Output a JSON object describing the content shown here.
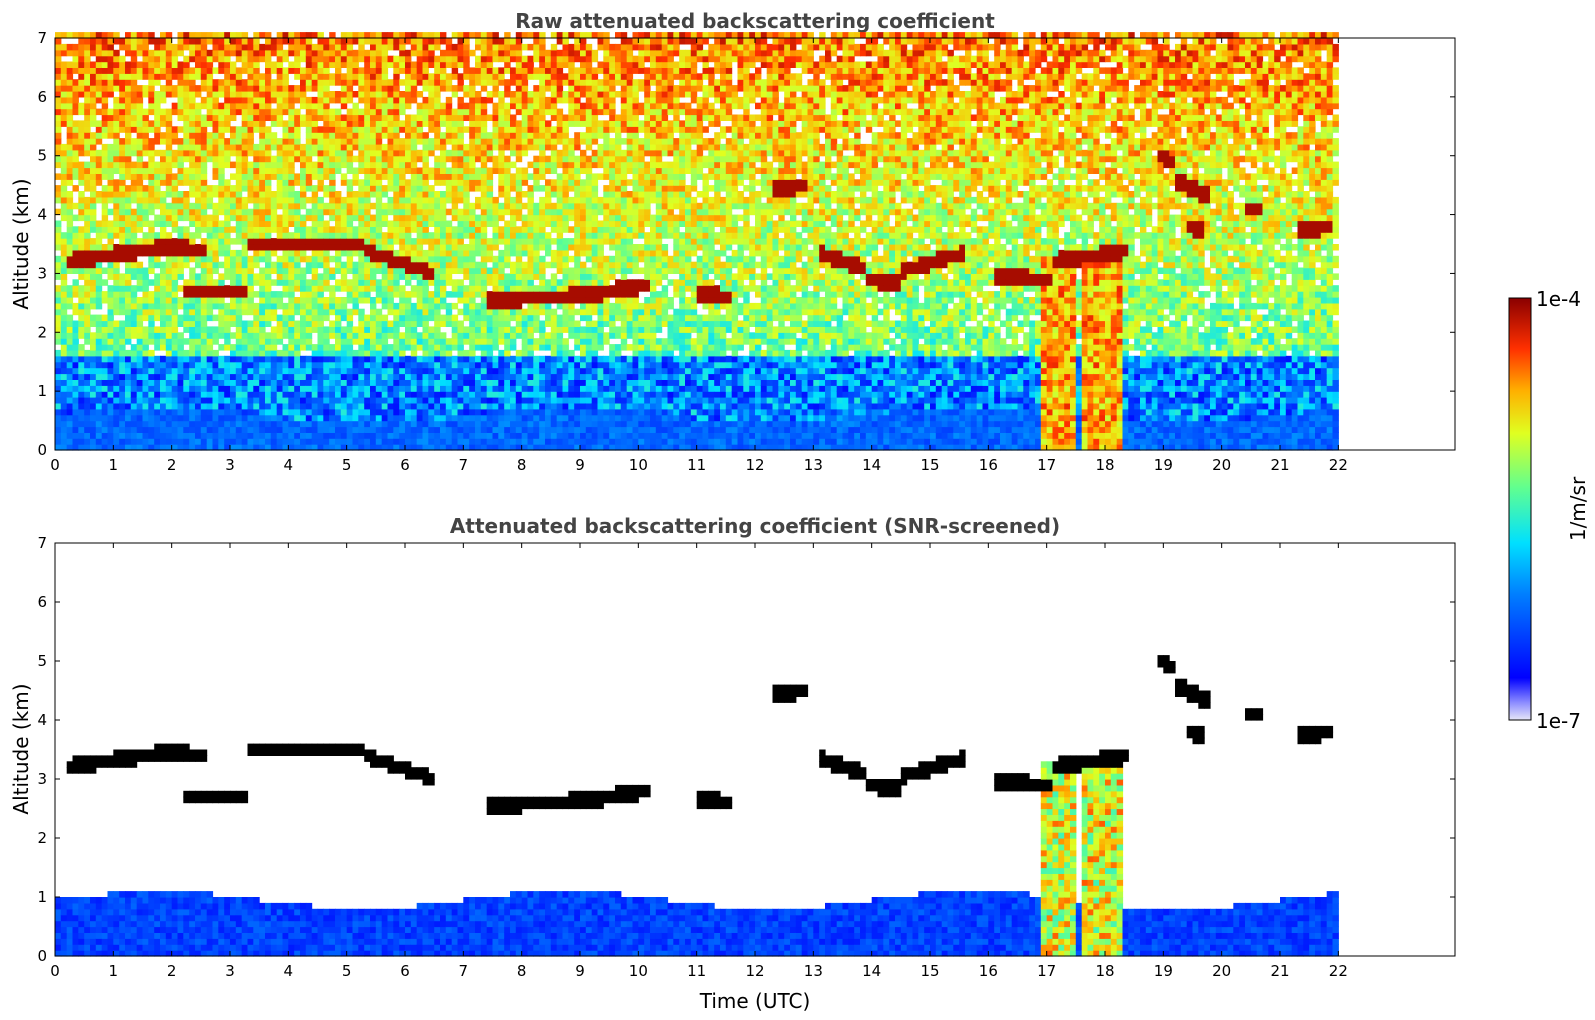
{
  "chart_data": [
    {
      "type": "heatmap",
      "title": "Raw attenuated backscattering coefficient",
      "xlabel": "",
      "ylabel": "Altitude (km)",
      "xlim": [
        0,
        24
      ],
      "ylim": [
        0,
        7
      ],
      "data_end_hour": 22,
      "x_ticks": [
        "0",
        "1",
        "2",
        "3",
        "4",
        "5",
        "6",
        "7",
        "8",
        "9",
        "10",
        "11",
        "12",
        "13",
        "14",
        "15",
        "16",
        "17",
        "18",
        "19",
        "20",
        "21",
        "22"
      ],
      "y_ticks": [
        "0",
        "1",
        "2",
        "3",
        "4",
        "5",
        "6",
        "7"
      ],
      "screened": false,
      "cloud_layers": [
        {
          "t0": 0.2,
          "t1": 1.9,
          "h0": 3.2,
          "h1": 3.45
        },
        {
          "t0": 1.9,
          "t1": 2.6,
          "h0": 3.45,
          "h1": 3.4
        },
        {
          "t0": 2.2,
          "t1": 3.3,
          "h0": 2.7,
          "h1": 2.7
        },
        {
          "t0": 3.3,
          "t1": 5.3,
          "h0": 3.5,
          "h1": 3.5
        },
        {
          "t0": 5.3,
          "t1": 6.5,
          "h0": 3.4,
          "h1": 3.0
        },
        {
          "t0": 7.4,
          "t1": 9.4,
          "h0": 2.55,
          "h1": 2.65
        },
        {
          "t0": 9.4,
          "t1": 10.2,
          "h0": 2.7,
          "h1": 2.8
        },
        {
          "t0": 11.0,
          "t1": 11.6,
          "h0": 2.65,
          "h1": 2.6
        },
        {
          "t0": 12.3,
          "t1": 12.9,
          "h0": 4.45,
          "h1": 4.5
        },
        {
          "t0": 13.1,
          "t1": 13.9,
          "h0": 3.35,
          "h1": 3.1
        },
        {
          "t0": 13.9,
          "t1": 14.5,
          "h0": 2.9,
          "h1": 2.85
        },
        {
          "t0": 14.5,
          "t1": 15.6,
          "h0": 3.05,
          "h1": 3.35
        },
        {
          "t0": 16.1,
          "t1": 17.1,
          "h0": 2.95,
          "h1": 2.9
        },
        {
          "t0": 17.1,
          "t1": 18.4,
          "h0": 3.2,
          "h1": 3.4
        },
        {
          "t0": 18.9,
          "t1": 19.2,
          "h0": 5.0,
          "h1": 4.9
        },
        {
          "t0": 19.2,
          "t1": 19.8,
          "h0": 4.6,
          "h1": 4.3
        },
        {
          "t0": 19.4,
          "t1": 19.7,
          "h0": 3.8,
          "h1": 3.75
        },
        {
          "t0": 20.4,
          "t1": 20.7,
          "h0": 4.1,
          "h1": 4.1
        },
        {
          "t0": 21.3,
          "t1": 21.9,
          "h0": 3.75,
          "h1": 3.8
        }
      ],
      "precip_shafts": [
        {
          "t0": 16.9,
          "t1": 17.5,
          "h_top": 3.3
        },
        {
          "t0": 17.6,
          "t1": 18.3,
          "h_top": 3.4
        }
      ]
    },
    {
      "type": "heatmap",
      "title": "Attenuated backscattering coefficient (SNR-screened)",
      "xlabel": "Time (UTC)",
      "ylabel": "Altitude (km)",
      "xlim": [
        0,
        24
      ],
      "ylim": [
        0,
        7
      ],
      "data_end_hour": 22,
      "x_ticks": [
        "0",
        "1",
        "2",
        "3",
        "4",
        "5",
        "6",
        "7",
        "8",
        "9",
        "10",
        "11",
        "12",
        "13",
        "14",
        "15",
        "16",
        "17",
        "18",
        "19",
        "20",
        "21",
        "22"
      ],
      "y_ticks": [
        "0",
        "1",
        "2",
        "3",
        "4",
        "5",
        "6",
        "7"
      ],
      "screened": true
    }
  ],
  "colorbar": {
    "label": "1/m/sr",
    "max_label": "1e-4",
    "min_label": "1e-7",
    "scale": "log",
    "colormap": "jet"
  }
}
